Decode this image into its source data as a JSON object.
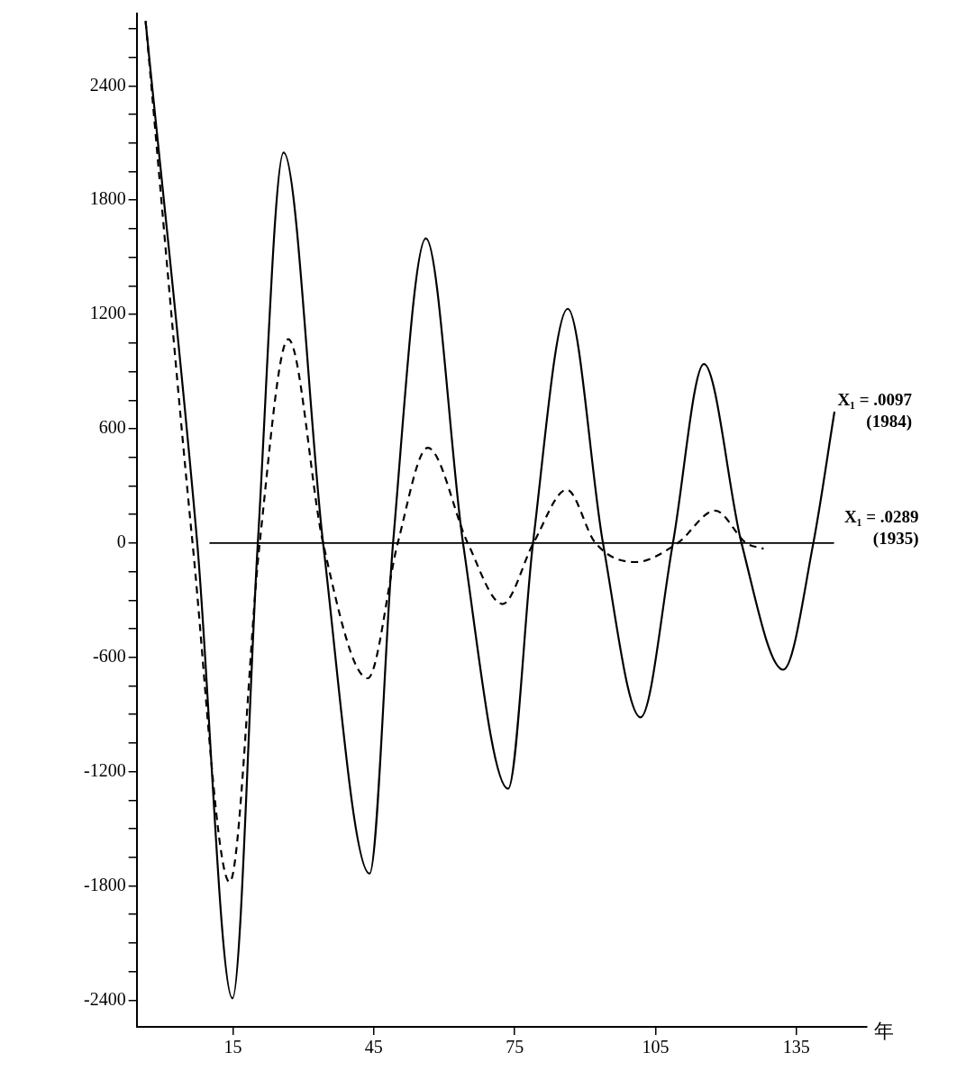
{
  "chart_data": {
    "type": "line",
    "xlabel": "年",
    "xlim": [
      -5.5,
      150
    ],
    "xticks": [
      15,
      45,
      75,
      105,
      135
    ],
    "ylim": [
      -2540,
      2780
    ],
    "yticks": [
      -2400,
      {
        "value": -2250,
        "label": null
      },
      {
        "value": -2100,
        "label": null
      },
      {
        "value": -1950,
        "label": null
      },
      -1800,
      {
        "value": -1650,
        "label": null
      },
      {
        "value": -1500,
        "label": null
      },
      {
        "value": -1350,
        "label": null
      },
      -1200,
      {
        "value": -1050,
        "label": null
      },
      {
        "value": -900,
        "label": null
      },
      {
        "value": -750,
        "label": null
      },
      -600,
      {
        "value": -450,
        "label": null
      },
      {
        "value": -300,
        "label": null
      },
      {
        "value": -150,
        "label": null
      },
      0,
      {
        "value": 150,
        "label": null
      },
      {
        "value": 300,
        "label": null
      },
      {
        "value": 450,
        "label": null
      },
      600,
      {
        "value": 750,
        "label": null
      },
      {
        "value": 900,
        "label": null
      },
      {
        "value": 1050,
        "label": null
      },
      1200,
      {
        "value": 1350,
        "label": null
      },
      {
        "value": 1500,
        "label": null
      },
      {
        "value": 1650,
        "label": null
      },
      1800,
      {
        "value": 1950,
        "label": null
      },
      {
        "value": 2100,
        "label": null
      },
      {
        "value": 2250,
        "label": null
      },
      2400,
      {
        "value": 2550,
        "label": null
      },
      {
        "value": 2700,
        "label": null
      }
    ],
    "grid": false,
    "legend": false,
    "marker": "none",
    "series": [
      {
        "color": "#000000",
        "line_style": "solid",
        "x": [
          -3.6,
          7.4,
          14.9,
          20.3,
          25.8,
          34.2,
          44.1,
          49.1,
          56.1,
          64,
          73.6,
          78.9,
          86.3,
          93.8,
          101.8,
          108.7,
          115.3,
          123.3,
          132.2,
          138.6,
          143.1
        ],
        "values": [
          2740,
          0,
          -2390,
          0,
          2050,
          0,
          -1735,
          0,
          1600,
          0,
          -1290,
          0,
          1230,
          0,
          -915,
          0,
          940,
          0,
          -665,
          0,
          690
        ]
      },
      {
        "color": "#000000",
        "line_style": "dashed",
        "x": [
          -3.6,
          6.4,
          14.3,
          20.7,
          26.8,
          34.2,
          43.7,
          50.1,
          56.5,
          65,
          72.4,
          79,
          86.1,
          92.2,
          100.8,
          109.7,
          117.7,
          124.3,
          128
        ],
        "values": [
          2740,
          0,
          -1780,
          0,
          1070,
          0,
          -710,
          0,
          500,
          0,
          -320,
          0,
          280,
          0,
          -100,
          0,
          170,
          0,
          -30
        ]
      }
    ],
    "ref_lines": [
      {
        "axis": "y",
        "value": 0,
        "color": "#000000"
      }
    ],
    "annotations": [
      {
        "text": "X₁ = .0097\n(1984)",
        "x": 143,
        "y": 690
      },
      "X₁ = .0289\n(1935)"
    ]
  }
}
